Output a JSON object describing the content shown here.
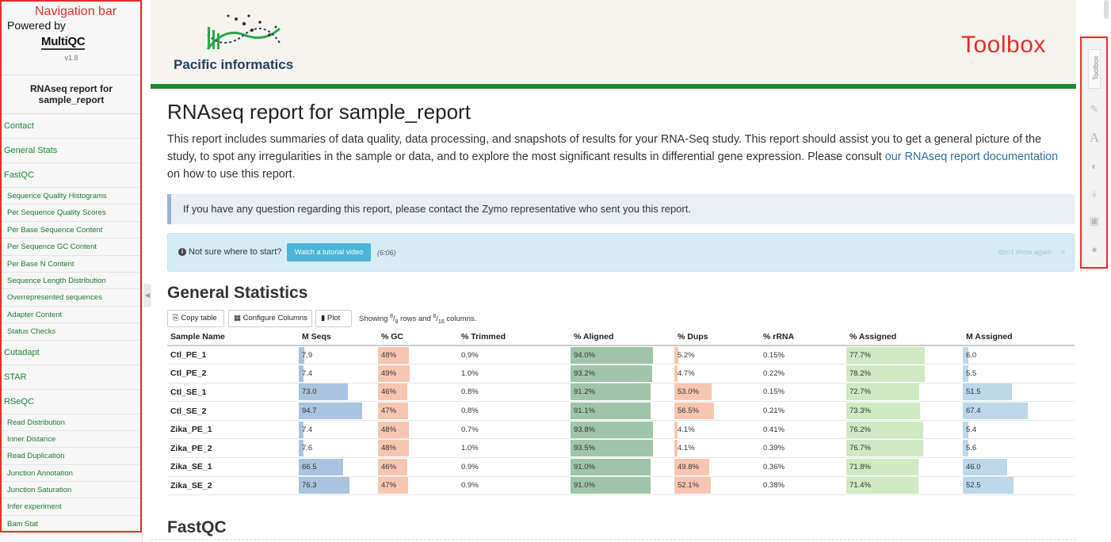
{
  "annotations": {
    "navigation_bar": "Navigation bar",
    "toolbox": "Toolbox"
  },
  "sidebar": {
    "powered_by": "Powered by",
    "logo": "MultiQC",
    "version": "v1.8",
    "report_title": "RNAseq report for sample_report",
    "items": [
      {
        "label": "Contact",
        "level": "top"
      },
      {
        "label": "General Stats",
        "level": "top"
      },
      {
        "label": "FastQC",
        "level": "top"
      },
      {
        "label": "Sequence Quality Histograms",
        "level": "sub"
      },
      {
        "label": "Per Sequence Quality Scores",
        "level": "sub"
      },
      {
        "label": "Per Base Sequence Content",
        "level": "sub"
      },
      {
        "label": "Per Sequence GC Content",
        "level": "sub"
      },
      {
        "label": "Per Base N Content",
        "level": "sub"
      },
      {
        "label": "Sequence Length Distribution",
        "level": "sub"
      },
      {
        "label": "Overrepresented sequences",
        "level": "sub"
      },
      {
        "label": "Adapter Content",
        "level": "sub"
      },
      {
        "label": "Status Checks",
        "level": "sub"
      },
      {
        "label": "Cutadapt",
        "level": "top"
      },
      {
        "label": "STAR",
        "level": "top"
      },
      {
        "label": "RSeQC",
        "level": "top"
      },
      {
        "label": "Read Distribution",
        "level": "sub"
      },
      {
        "label": "Inner Distance",
        "level": "sub"
      },
      {
        "label": "Read Duplication",
        "level": "sub"
      },
      {
        "label": "Junction Annotation",
        "level": "sub"
      },
      {
        "label": "Junction Saturation",
        "level": "sub"
      },
      {
        "label": "Infer experiment",
        "level": "sub"
      },
      {
        "label": "Bam Stat",
        "level": "sub"
      }
    ]
  },
  "header": {
    "brand": "Pacific informatics",
    "accent_color": "#1a8a2f"
  },
  "main": {
    "title": "RNAseq report for sample_report",
    "intro_text": "This report includes summaries of data quality, data processing, and snapshots of results for your RNA-Seq study. This report should assist you to get a general picture of the study, to spot any irregularities in the sample or data, and to explore the most significant results in differential gene expression. Please consult ",
    "intro_link": "our RNAseq report documentation",
    "intro_tail": " on how to use this report.",
    "callout": "If you have any question regarding this report, please contact the Zymo representative who sent you this report.",
    "tutorial": {
      "question": "Not sure where to start?",
      "button": "Watch a tutorial video",
      "duration": "(6:06)",
      "dont_show": "don't show again",
      "close": "×"
    },
    "general_stats_title": "General Statistics",
    "fastqc_title": "FastQC",
    "table_tools": {
      "copy": "Copy table",
      "configure": "Configure Columns",
      "plot": "Plot",
      "showing_prefix": "Showing ",
      "rows_num": "8",
      "rows_den": "8",
      "rows_mid": " rows and ",
      "cols_num": "8",
      "cols_den": "16",
      "cols_suffix": " columns."
    }
  },
  "table": {
    "columns": [
      "Sample Name",
      "M Seqs",
      "% GC",
      "% Trimmed",
      "% Aligned",
      "% Dups",
      "% rRNA",
      "% Assigned",
      "M Assigned"
    ],
    "rows": [
      [
        "Ctl_PE_1",
        "7.9",
        "48%",
        "0.9%",
        "94.0%",
        "5.2%",
        "0.15%",
        "77.7%",
        "6.0"
      ],
      [
        "Ctl_PE_2",
        "7.4",
        "49%",
        "1.0%",
        "93.2%",
        "4.7%",
        "0.22%",
        "78.2%",
        "5.5"
      ],
      [
        "Ctl_SE_1",
        "73.0",
        "46%",
        "0.8%",
        "91.2%",
        "53.0%",
        "0.15%",
        "72.7%",
        "51.5"
      ],
      [
        "Ctl_SE_2",
        "94.7",
        "47%",
        "0.8%",
        "91.1%",
        "56.5%",
        "0.21%",
        "73.3%",
        "67.4"
      ],
      [
        "Zika_PE_1",
        "7.4",
        "48%",
        "0.7%",
        "93.8%",
        "4.1%",
        "0.41%",
        "76.2%",
        "5.4"
      ],
      [
        "Zika_PE_2",
        "7.6",
        "48%",
        "1.0%",
        "93.5%",
        "4.1%",
        "0.39%",
        "76.7%",
        "5.6"
      ],
      [
        "Zika_SE_1",
        "66.5",
        "46%",
        "0.9%",
        "91.0%",
        "49.8%",
        "0.36%",
        "71.8%",
        "46.0"
      ],
      [
        "Zika_SE_2",
        "76.3",
        "47%",
        "0.9%",
        "91.0%",
        "52.1%",
        "0.38%",
        "71.4%",
        "52.5"
      ]
    ],
    "bar_colors": [
      "",
      "#a9c4de",
      "#f7c6b0",
      "",
      "#9fc5a8",
      "#f7c6b0",
      "",
      "#cfe9c2",
      "#bcd8ea"
    ],
    "bar_max": [
      null,
      94.7,
      100,
      null,
      100,
      100,
      null,
      100,
      100
    ]
  },
  "toolbox": {
    "label": "Toolbox",
    "icons": [
      "pin-icon",
      "font-icon",
      "eye-slash-icon",
      "download-icon",
      "save-icon",
      "help-icon"
    ]
  }
}
